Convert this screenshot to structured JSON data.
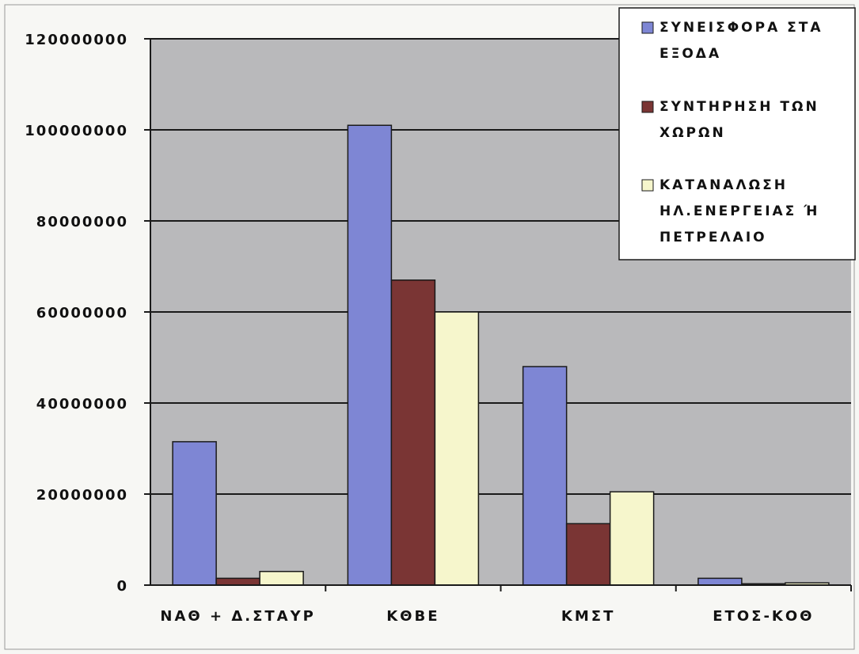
{
  "chart_data": {
    "type": "bar",
    "title": "",
    "xlabel": "",
    "ylabel": "",
    "categories": [
      "ΝΑΘ + Δ.ΣΤΑΥΡ",
      "ΚΘΒΕ",
      "ΚΜΣΤ",
      "ΕΤΟΣ-ΚΟΘ"
    ],
    "ylim": [
      0,
      120000000
    ],
    "yticks": [
      {
        "value": 0,
        "label": "0"
      },
      {
        "value": 20000000,
        "label": "20000000"
      },
      {
        "value": 40000000,
        "label": "40000000"
      },
      {
        "value": 60000000,
        "label": "60000000"
      },
      {
        "value": 80000000,
        "label": "80000000"
      },
      {
        "value": 100000000,
        "label": "100000000"
      },
      {
        "value": 120000000,
        "label": "120000000"
      }
    ],
    "grid": true,
    "legend_position": "top-right",
    "series": [
      {
        "name": [
          "ΣΥΝΕΙΣΦΟΡΑ ΣΤΑ",
          "ΕΞΟΔΑ"
        ],
        "color": "#7e86d4",
        "values": [
          31500000,
          101000000,
          48000000,
          1500000
        ]
      },
      {
        "name": [
          "ΣΥΝΤΗΡΗΣΗ ΤΩΝ",
          "ΧΩΡΩΝ"
        ],
        "color": "#7a3534",
        "values": [
          1500000,
          67000000,
          13500000,
          300000
        ]
      },
      {
        "name": [
          "ΚΑΤΑΝΑΛΩΣΗ",
          "ΗΛ.ΕΝΕΡΓΕΙΑΣ Ή",
          "ΠΕΤΡΕΛΑΙΟ"
        ],
        "color": "#f6f6cc",
        "values": [
          3000000,
          60000000,
          20500000,
          500000
        ]
      }
    ]
  }
}
